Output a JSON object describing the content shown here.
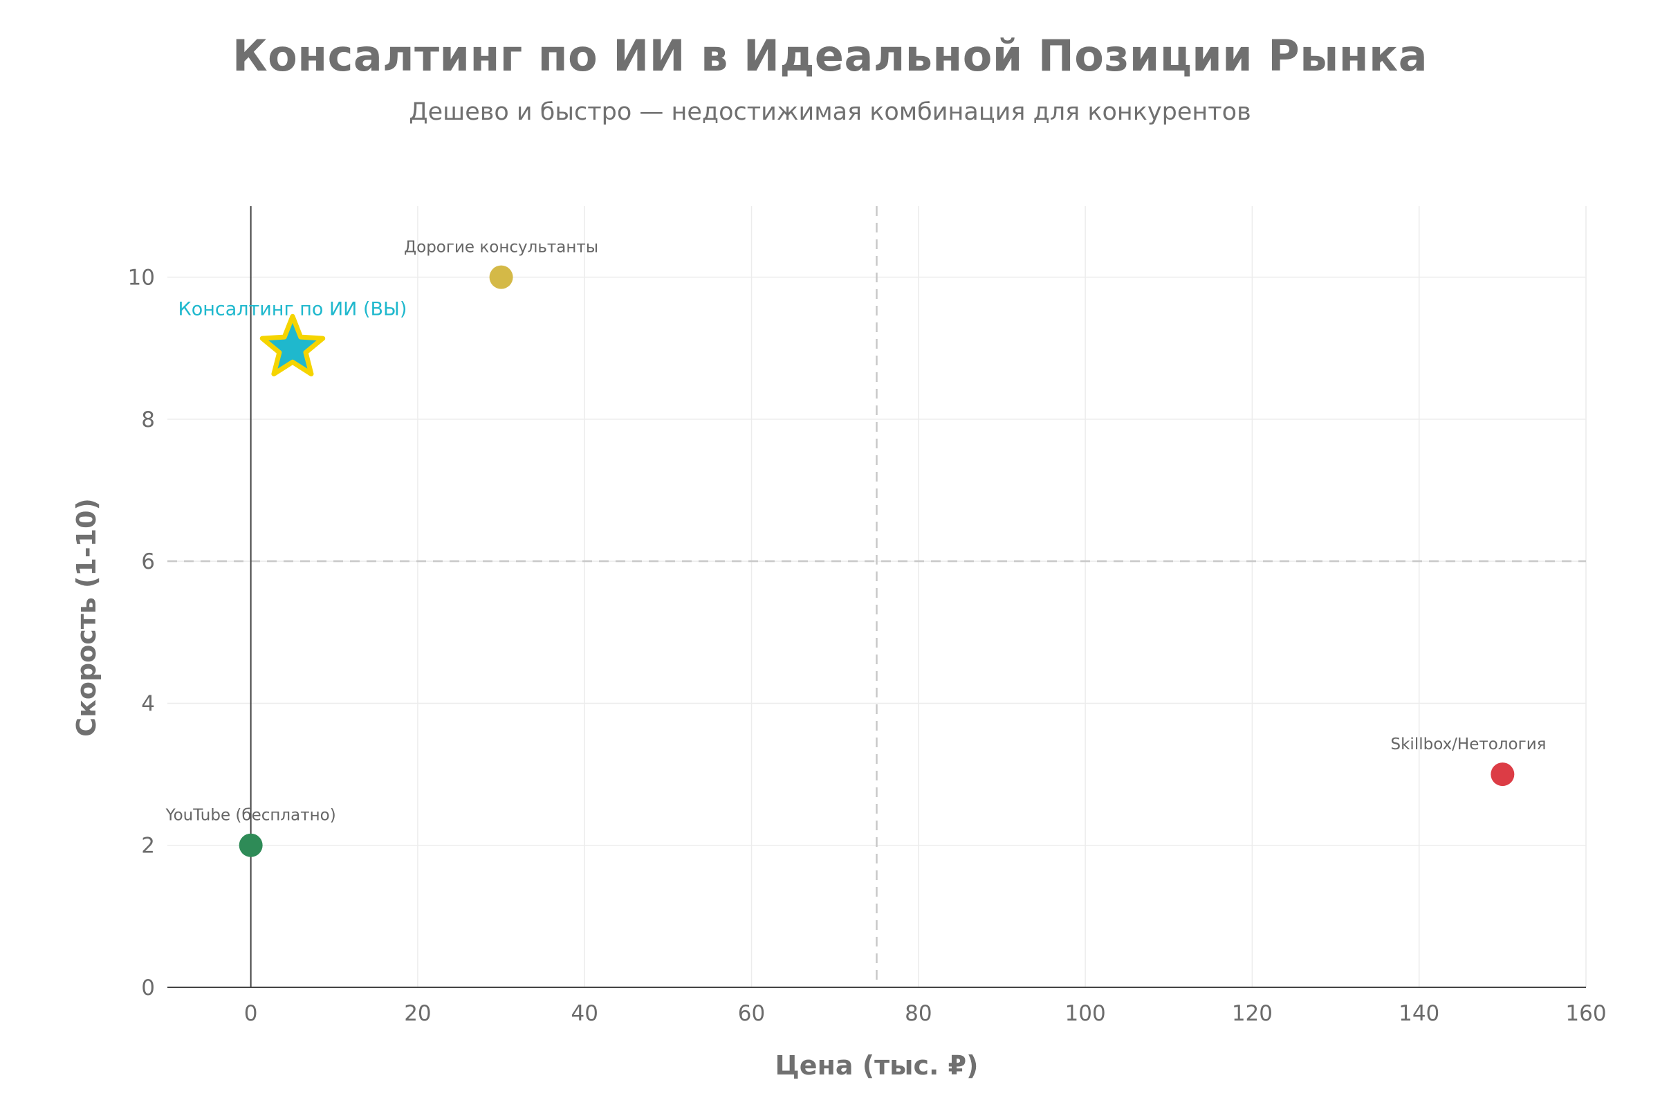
{
  "chart_data": {
    "type": "scatter",
    "title": "Консалтинг по ИИ в Идеальной Позиции Рынка",
    "subtitle": "Дешево и быстро — недостижимая комбинация для конкурентов",
    "xlabel": "Цена (тыс. ₽)",
    "ylabel": "Скорость (1-10)",
    "xlim": [
      -10,
      160
    ],
    "ylim": [
      0,
      11
    ],
    "xticks": [
      0,
      20,
      40,
      60,
      80,
      100,
      120,
      140,
      160
    ],
    "yticks": [
      0,
      2,
      4,
      6,
      8,
      10
    ],
    "grid": true,
    "reference_lines": {
      "x": 75,
      "y": 6
    },
    "points": [
      {
        "name": "YouTube (бесплатно)",
        "x": 0,
        "y": 2,
        "color": "#2e8b57",
        "marker": "circle",
        "label_color": "#666666"
      },
      {
        "name": "Дорогие консультанты",
        "x": 30,
        "y": 10,
        "color": "#d4b947",
        "marker": "circle",
        "label_color": "#666666"
      },
      {
        "name": "Skillbox/Нетология",
        "x": 150,
        "y": 3,
        "color": "#dc3c45",
        "marker": "circle",
        "label_color": "#666666"
      },
      {
        "name": "Консалтинг по ИИ (ВЫ)",
        "x": 5,
        "y": 9,
        "color": "#1fb8cd",
        "marker": "star",
        "outline": "#f5d400",
        "label_color": "#1fb8cd"
      }
    ]
  }
}
